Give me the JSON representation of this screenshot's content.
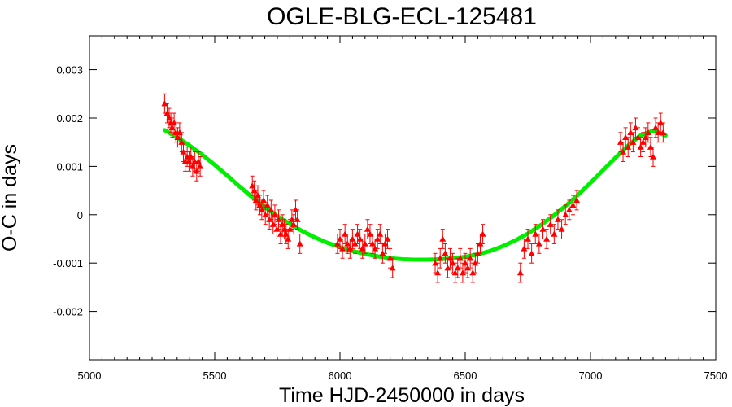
{
  "chart_data": {
    "type": "scatter",
    "title": "OGLE-BLG-ECL-125481",
    "xlabel": "Time HJD-2450000 in days",
    "ylabel": "O-C in days",
    "xlim": [
      5000,
      7500
    ],
    "ylim": [
      -0.003,
      0.0037
    ],
    "xticks": [
      5000,
      5500,
      6000,
      6500,
      7000,
      7500
    ],
    "xtick_labels": [
      "5000",
      "5500",
      "6000",
      "6500",
      "7000",
      "7500"
    ],
    "yticks": [
      -0.002,
      -0.001,
      0,
      0.001,
      0.002,
      0.003
    ],
    "ytick_labels": [
      "-0.002",
      "-0.001",
      "0",
      "0.001",
      "0.002",
      "0.003"
    ],
    "grid": false,
    "legend": "none",
    "colors": {
      "observed": "#ff0000",
      "model": "#00ee00",
      "axes": "#000000"
    },
    "series": [
      {
        "type": "scatter-errorbar",
        "marker": "triangle",
        "x": [
          5300,
          5310,
          5318,
          5325,
          5330,
          5338,
          5345,
          5352,
          5360,
          5368,
          5375,
          5382,
          5390,
          5398,
          5405,
          5412,
          5420,
          5428,
          5435,
          5442,
          5650,
          5658,
          5665,
          5672,
          5680,
          5688,
          5695,
          5702,
          5710,
          5718,
          5725,
          5733,
          5740,
          5748,
          5755,
          5763,
          5770,
          5778,
          5785,
          5793,
          5800,
          5808,
          5815,
          5823,
          5830,
          5840,
          5990,
          6000,
          6010,
          6020,
          6030,
          6040,
          6050,
          6060,
          6070,
          6080,
          6090,
          6100,
          6110,
          6120,
          6130,
          6140,
          6150,
          6160,
          6170,
          6180,
          6190,
          6200,
          6210,
          6380,
          6390,
          6400,
          6410,
          6420,
          6430,
          6440,
          6450,
          6460,
          6470,
          6480,
          6490,
          6500,
          6510,
          6520,
          6530,
          6540,
          6550,
          6560,
          6570,
          6720,
          6735,
          6750,
          6765,
          6780,
          6795,
          6810,
          6825,
          6840,
          6855,
          6870,
          6885,
          6900,
          6915,
          6930,
          6945,
          7120,
          7130,
          7140,
          7150,
          7160,
          7170,
          7180,
          7190,
          7200,
          7210,
          7220,
          7230,
          7240,
          7250,
          7260,
          7270,
          7280,
          7290
        ],
        "y": [
          0.0023,
          0.0021,
          0.002,
          0.0019,
          0.0018,
          0.0019,
          0.0017,
          0.0016,
          0.0017,
          0.0015,
          0.0013,
          0.0011,
          0.0012,
          0.0011,
          0.0012,
          0.001,
          0.0011,
          0.0009,
          0.0011,
          0.001,
          0.0006,
          0.0005,
          0.0003,
          0.0004,
          0.0002,
          0.0001,
          0.0003,
          0.0,
          0.0002,
          -0.0001,
          0.0001,
          -0.0002,
          0.0,
          -0.0003,
          -0.0001,
          -0.0004,
          -0.0002,
          -0.0003,
          -0.0004,
          -0.0005,
          -0.0003,
          -0.0001,
          -0.0002,
          0.0001,
          -0.0001,
          -0.0006,
          -0.0006,
          -0.0005,
          -0.0007,
          -0.0004,
          -0.0006,
          -0.0007,
          -0.0005,
          -0.0006,
          -0.0004,
          -0.0005,
          -0.0007,
          -0.0006,
          -0.0003,
          -0.0004,
          -0.0006,
          -0.0007,
          -0.0005,
          -0.0004,
          -0.0008,
          -0.0006,
          -0.0005,
          -0.0009,
          -0.0011,
          -0.001,
          -0.0012,
          -0.0009,
          -0.0005,
          -0.0008,
          -0.0011,
          -0.0009,
          -0.001,
          -0.0012,
          -0.0011,
          -0.0009,
          -0.0012,
          -0.001,
          -0.0011,
          -0.0009,
          -0.0012,
          -0.001,
          -0.0008,
          -0.0006,
          -0.0004,
          -0.0012,
          -0.0007,
          -0.0005,
          -0.0008,
          -0.0004,
          -0.0006,
          -0.0003,
          -0.0005,
          -0.0002,
          -0.0004,
          -0.0001,
          -0.0003,
          0.0,
          0.0001,
          0.0002,
          0.0003,
          0.0015,
          0.0013,
          0.0016,
          0.0014,
          0.0017,
          0.0015,
          0.0018,
          0.0016,
          0.0014,
          0.0015,
          0.0016,
          0.0017,
          0.0014,
          0.0012,
          0.0018,
          0.0017,
          0.0019,
          0.0017
        ],
        "yerr": 0.0002
      },
      {
        "type": "line",
        "x": [
          5300,
          5350,
          5400,
          5450,
          5500,
          5550,
          5600,
          5650,
          5700,
          5750,
          5800,
          5850,
          5900,
          5950,
          6000,
          6050,
          6100,
          6150,
          6200,
          6250,
          6300,
          6350,
          6400,
          6450,
          6500,
          6550,
          6600,
          6650,
          6700,
          6750,
          6800,
          6850,
          6900,
          6950,
          7000,
          7050,
          7100,
          7150,
          7200,
          7250,
          7300
        ],
        "y": [
          0.00175,
          0.0016,
          0.00143,
          0.00124,
          0.00103,
          0.00081,
          0.00058,
          0.00036,
          0.00016,
          -3e-05,
          -0.00019,
          -0.00034,
          -0.00047,
          -0.00058,
          -0.00067,
          -0.00075,
          -0.00081,
          -0.00086,
          -0.0009,
          -0.00092,
          -0.00093,
          -0.00093,
          -0.00092,
          -0.0009,
          -0.00087,
          -0.00082,
          -0.00075,
          -0.00065,
          -0.00053,
          -0.00039,
          -0.00022,
          -3e-05,
          0.00018,
          0.00041,
          0.00066,
          0.00092,
          0.00118,
          0.00143,
          0.00164,
          0.00174,
          0.00164
        ]
      }
    ]
  }
}
